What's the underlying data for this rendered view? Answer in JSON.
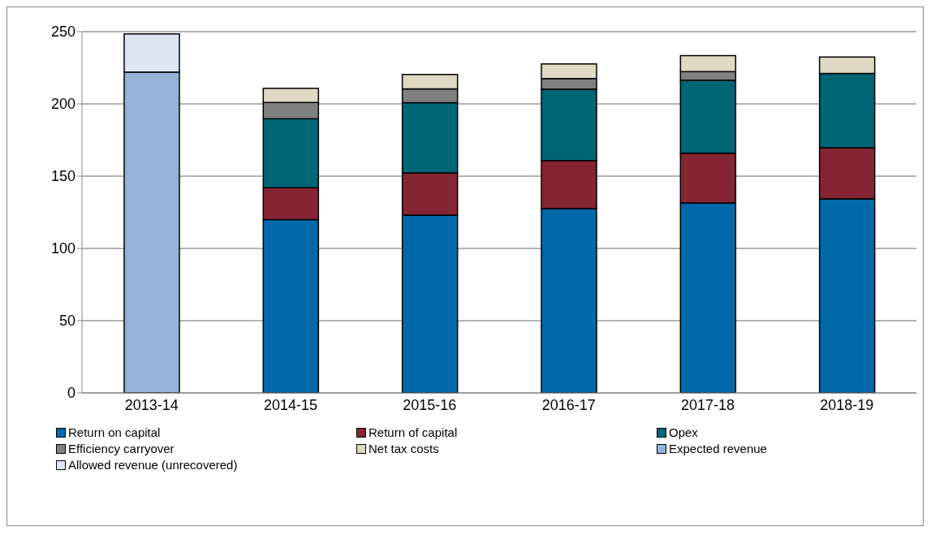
{
  "chart_data": {
    "type": "bar",
    "stacked": true,
    "categories": [
      "2013-14",
      "2014-15",
      "2015-16",
      "2016-17",
      "2017-18",
      "2018-19"
    ],
    "series": [
      {
        "name": "Return on capital",
        "color": "#0169aa",
        "values": [
          null,
          120,
          123,
          127.6,
          131.5,
          134.2
        ]
      },
      {
        "name": "Return of capital",
        "color": "#852533",
        "values": [
          null,
          22,
          29.3,
          33.2,
          34.4,
          35.5
        ]
      },
      {
        "name": "Opex",
        "color": "#006574",
        "values": [
          null,
          47.8,
          48.5,
          49.5,
          50.5,
          51.3
        ]
      },
      {
        "name": "Efficiency carryover",
        "color": "#808080",
        "values": [
          null,
          11.2,
          9.6,
          7.3,
          6,
          null
        ]
      },
      {
        "name": "Net tax costs",
        "color": "#ddd9c3",
        "values": [
          null,
          9.8,
          10,
          10.1,
          11,
          11.5
        ]
      },
      {
        "name": "Expected revenue",
        "color": "#95b3d7",
        "values": [
          222,
          null,
          null,
          null,
          null,
          null
        ]
      },
      {
        "name": "Allowed revenue (unrecovered)",
        "color": "#dce6f2",
        "values": [
          26.5,
          null,
          null,
          null,
          null,
          null
        ]
      }
    ],
    "ylim": [
      0,
      250
    ],
    "yticks": [
      0,
      50,
      100,
      150,
      200,
      250
    ],
    "grid": "y",
    "legend": "bottom"
  }
}
